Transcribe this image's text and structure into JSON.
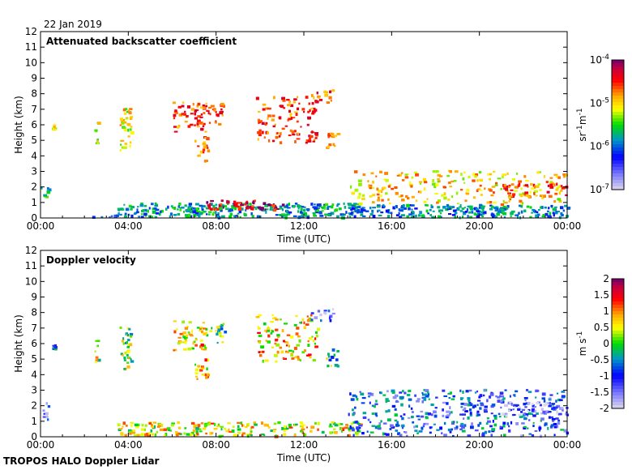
{
  "header": {
    "date": "22 Jan 2019"
  },
  "footer": {
    "instrument": "TROPOS HALO Doppler Lidar"
  },
  "chart_data": [
    {
      "type": "heatmap",
      "title": "Attenuated backscatter coefficient",
      "xlabel": "Time (UTC)",
      "ylabel": "Height (km)",
      "xlim": [
        0,
        24
      ],
      "ylim": [
        0,
        12
      ],
      "x_ticks": [
        "00:00",
        "04:00",
        "08:00",
        "12:00",
        "16:00",
        "20:00",
        "00:00"
      ],
      "y_ticks": [
        "0",
        "1",
        "2",
        "3",
        "4",
        "5",
        "6",
        "7",
        "8",
        "9",
        "10",
        "11",
        "12"
      ],
      "colorbar": {
        "scale": "log",
        "range": [
          -7,
          -4
        ],
        "ticks": [
          {
            "base": "10",
            "exp": "-4"
          },
          {
            "base": "10",
            "exp": "-5"
          },
          {
            "base": "10",
            "exp": "-6"
          },
          {
            "base": "10",
            "exp": "-7"
          }
        ],
        "unit_parts": [
          {
            "base": "sr",
            "exp": "-1"
          },
          {
            "base": " m",
            "exp": "-1"
          }
        ]
      },
      "features": [
        {
          "t": [
            0,
            0.4
          ],
          "h": [
            1,
            2
          ],
          "v": -5.6,
          "d": 0.6
        },
        {
          "t": [
            0.5,
            0.65
          ],
          "h": [
            5.5,
            6
          ],
          "v": -5.2,
          "d": 0.7
        },
        {
          "t": [
            2.45,
            2.6
          ],
          "h": [
            4.5,
            6.3
          ],
          "v": -5.2,
          "d": 0.8
        },
        {
          "t": [
            3.6,
            4.1
          ],
          "h": [
            4.3,
            7
          ],
          "v": -5.1,
          "d": 0.7
        },
        {
          "t": [
            6.0,
            7.6
          ],
          "h": [
            5.5,
            7.4
          ],
          "v": -4.6,
          "d": 0.5
        },
        {
          "t": [
            7.0,
            7.6
          ],
          "h": [
            3.5,
            5.2
          ],
          "v": -4.6,
          "d": 0.5
        },
        {
          "t": [
            7.6,
            8.4
          ],
          "h": [
            6.0,
            7.4
          ],
          "v": -4.6,
          "d": 0.5
        },
        {
          "t": [
            9.8,
            12.6
          ],
          "h": [
            4.8,
            7.8
          ],
          "v": -4.6,
          "d": 0.35
        },
        {
          "t": [
            12.3,
            13.3
          ],
          "h": [
            7.4,
            8.2
          ],
          "v": -4.6,
          "d": 0.5
        },
        {
          "t": [
            13.0,
            13.5
          ],
          "h": [
            4.4,
            5.6
          ],
          "v": -4.6,
          "d": 0.6
        },
        {
          "t": [
            1.8,
            3.5
          ],
          "h": [
            0,
            0.15
          ],
          "v": -6.2,
          "d": 0.5
        },
        {
          "t": [
            3.5,
            14.6
          ],
          "h": [
            0,
            0.9
          ],
          "v": -5.8,
          "d": 0.85
        },
        {
          "t": [
            7.5,
            11.0
          ],
          "h": [
            0.5,
            1.1
          ],
          "v": -4.3,
          "d": 0.7
        },
        {
          "t": [
            14.0,
            24
          ],
          "h": [
            0,
            0.8
          ],
          "v": -5.9,
          "d": 0.8
        },
        {
          "t": [
            14.0,
            24
          ],
          "h": [
            0.8,
            3.0
          ],
          "v": -5.0,
          "d": 0.25
        },
        {
          "t": [
            21.0,
            24
          ],
          "h": [
            1.3,
            2.2
          ],
          "v": -4.6,
          "d": 0.5
        }
      ]
    },
    {
      "type": "heatmap",
      "title": "Doppler velocity",
      "xlabel": "Time (UTC)",
      "ylabel": "Height (km)",
      "xlim": [
        0,
        24
      ],
      "ylim": [
        0,
        12
      ],
      "x_ticks": [
        "00:00",
        "04:00",
        "08:00",
        "12:00",
        "16:00",
        "20:00",
        "00:00"
      ],
      "y_ticks": [
        "0",
        "1",
        "2",
        "3",
        "4",
        "5",
        "6",
        "7",
        "8",
        "9",
        "10",
        "11",
        "12"
      ],
      "colorbar": {
        "scale": "linear",
        "range": [
          -2,
          2
        ],
        "ticks": [
          "2",
          "1.5",
          "1",
          "0.5",
          "0",
          "-0.5",
          "-1",
          "-1.5",
          "-2"
        ],
        "unit_parts": [
          {
            "base": "m s",
            "exp": "-1"
          }
        ]
      },
      "features": [
        {
          "t": [
            0,
            0.4
          ],
          "h": [
            1,
            2.2
          ],
          "v": -1.2,
          "d": 0.5
        },
        {
          "t": [
            0.5,
            0.65
          ],
          "h": [
            5.5,
            6
          ],
          "v": -0.8,
          "d": 0.7
        },
        {
          "t": [
            2.45,
            2.6
          ],
          "h": [
            4.5,
            6.3
          ],
          "v": 0.3,
          "d": 0.8
        },
        {
          "t": [
            3.6,
            4.1
          ],
          "h": [
            4.3,
            7
          ],
          "v": 0.1,
          "d": 0.7
        },
        {
          "t": [
            6.0,
            7.6
          ],
          "h": [
            5.5,
            7.4
          ],
          "v": 0.6,
          "d": 0.5
        },
        {
          "t": [
            7.0,
            7.6
          ],
          "h": [
            3.5,
            5.2
          ],
          "v": 0.7,
          "d": 0.5
        },
        {
          "t": [
            7.6,
            8.4
          ],
          "h": [
            6.0,
            7.4
          ],
          "v": -0.1,
          "d": 0.5
        },
        {
          "t": [
            9.8,
            12.6
          ],
          "h": [
            4.8,
            7.8
          ],
          "v": 0.7,
          "d": 0.35
        },
        {
          "t": [
            12.3,
            13.3
          ],
          "h": [
            7.4,
            8.2
          ],
          "v": -1.3,
          "d": 0.5
        },
        {
          "t": [
            13.0,
            13.5
          ],
          "h": [
            4.4,
            5.6
          ],
          "v": -0.1,
          "d": 0.6
        },
        {
          "t": [
            3.5,
            14.6
          ],
          "h": [
            0,
            0.9
          ],
          "v": 0.5,
          "d": 0.6
        },
        {
          "t": [
            14.0,
            24
          ],
          "h": [
            0,
            3.0
          ],
          "v": -0.9,
          "d": 0.35
        },
        {
          "t": [
            21.0,
            24
          ],
          "h": [
            1.3,
            2.2
          ],
          "v": -1.6,
          "d": 0.5
        }
      ]
    }
  ]
}
